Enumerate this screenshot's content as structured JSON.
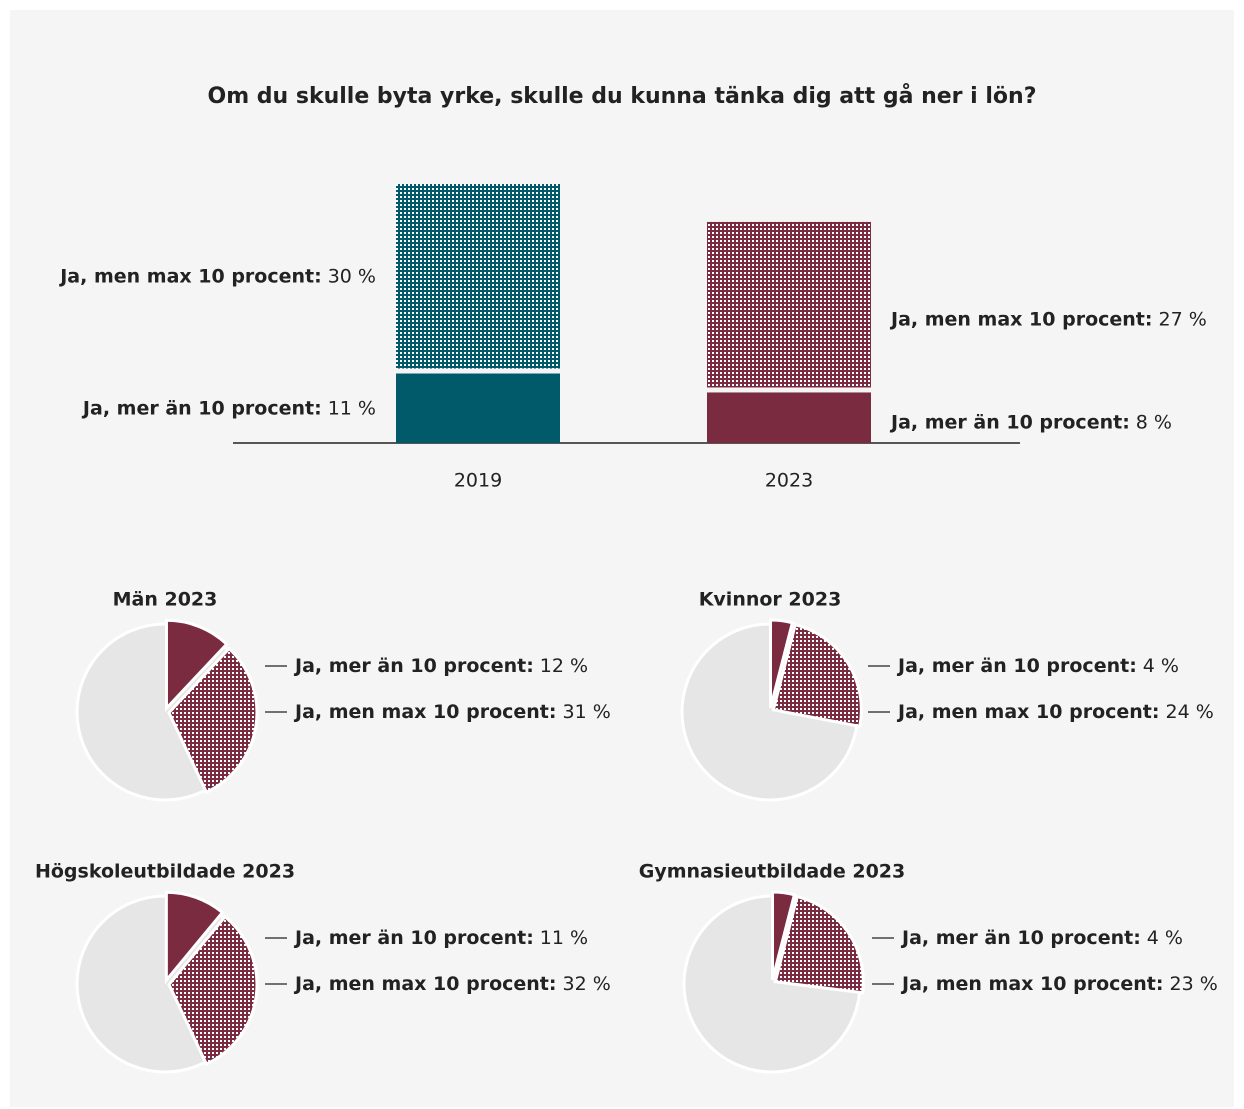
{
  "chart_data": [
    {
      "type": "bar",
      "title": "Om du skulle byta yrke, skulle du kunna tänka dig att gå ner i lön?",
      "categories": [
        "2019",
        "2023"
      ],
      "series": [
        {
          "name": "Ja, mer än 10 procent:",
          "values": [
            11,
            8
          ],
          "value_labels": [
            "11 %",
            "8 %"
          ],
          "colors": [
            "#005a6a",
            "#7a2b40"
          ],
          "pattern": "solid"
        },
        {
          "name": "Ja, men max 10 procent:",
          "values": [
            30,
            27
          ],
          "value_labels": [
            "30 %",
            "27 %"
          ],
          "colors": [
            "#005a6a",
            "#7a2b40"
          ],
          "pattern": "dotted"
        }
      ]
    },
    {
      "type": "pie",
      "title": "Män 2023",
      "categories": [
        "Ja, mer än 10 procent:",
        "Ja, men max 10 procent:"
      ],
      "values": [
        12,
        31
      ],
      "value_labels": [
        "12 %",
        "31 %"
      ],
      "colors": [
        "#7a2b40",
        "#7a2b40"
      ],
      "patterns": [
        "solid",
        "dotted"
      ]
    },
    {
      "type": "pie",
      "title": "Kvinnor 2023",
      "categories": [
        "Ja, mer än 10 procent:",
        "Ja, men max 10 procent:"
      ],
      "values": [
        4,
        24
      ],
      "value_labels": [
        "4 %",
        "24 %"
      ],
      "colors": [
        "#7a2b40",
        "#7a2b40"
      ],
      "patterns": [
        "solid",
        "dotted"
      ]
    },
    {
      "type": "pie",
      "title": "Högskoleutbildade 2023",
      "categories": [
        "Ja, mer än 10 procent:",
        "Ja, men max 10 procent:"
      ],
      "values": [
        11,
        32
      ],
      "value_labels": [
        "11 %",
        "32 %"
      ],
      "colors": [
        "#7a2b40",
        "#7a2b40"
      ],
      "patterns": [
        "solid",
        "dotted"
      ]
    },
    {
      "type": "pie",
      "title": "Gymnasieutbildade 2023",
      "categories": [
        "Ja, mer än 10 procent:",
        "Ja, men max 10 procent:"
      ],
      "values": [
        4,
        23
      ],
      "value_labels": [
        "4 %",
        "23 %"
      ],
      "colors": [
        "#7a2b40",
        "#7a2b40"
      ],
      "patterns": [
        "solid",
        "dotted"
      ]
    }
  ]
}
